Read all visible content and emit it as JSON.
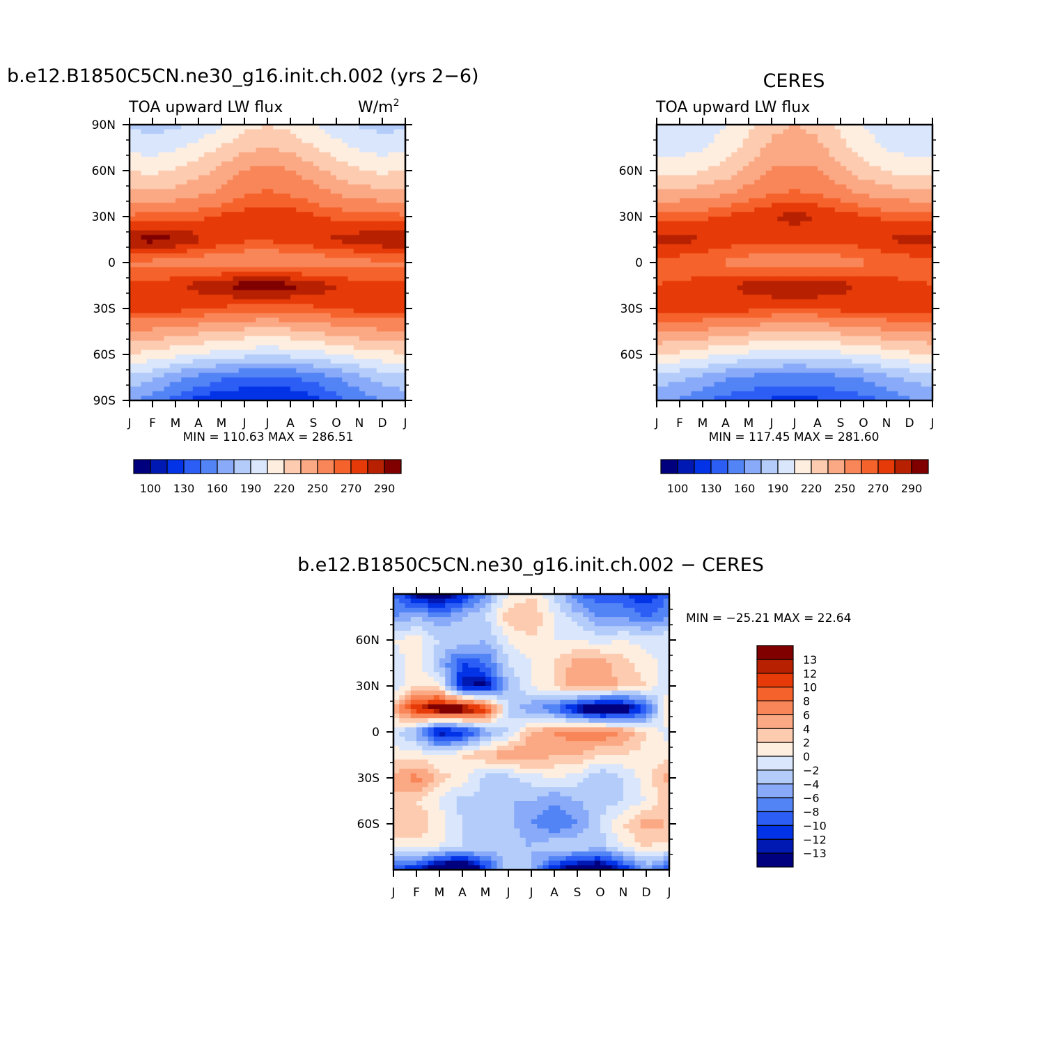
{
  "figure": {
    "panel1_title": "b.e12.B1850C5CN.ne30_g16.init.ch.002 (yrs 2−6)",
    "panel2_title": "CERES",
    "panel3_title": "b.e12.B1850C5CN.ne30_g16.init.ch.002 − CERES",
    "variable_label": "TOA upward LW flux",
    "units_base": "W/m",
    "units_exp": "2"
  },
  "colors": {
    "abs_palette": [
      "#00007f",
      "#0019b2",
      "#0233e6",
      "#2c5ef5",
      "#5384f6",
      "#88aaf8",
      "#b3ccfa",
      "#d9e6fc",
      "#feeee0",
      "#fdcbb0",
      "#fba984",
      "#f98658",
      "#f6622b",
      "#e63b08",
      "#b72102",
      "#800000"
    ],
    "diff_palette": [
      "#00007f",
      "#0019b2",
      "#0233e6",
      "#2c5ef5",
      "#5384f6",
      "#88aaf8",
      "#b3ccfa",
      "#d9e6fc",
      "#feeee0",
      "#fdcbb0",
      "#fba984",
      "#f98658",
      "#f6622b",
      "#e63b08",
      "#b72102",
      "#800000"
    ]
  },
  "chart_data": [
    {
      "type": "heatmap",
      "title": "b.e12.B1850C5CN.ne30_g16.init.ch.002 (yrs 2−6)",
      "subtitle": "TOA upward LW flux",
      "units": "W/m2",
      "x_tick_labels": [
        "J",
        "F",
        "M",
        "A",
        "M",
        "J",
        "J",
        "A",
        "S",
        "O",
        "N",
        "D",
        "J"
      ],
      "y_tick_labels": [
        "90N",
        "60N",
        "30N",
        "0",
        "30S",
        "60S",
        "90S"
      ],
      "ylim": [
        -90,
        90
      ],
      "min": 110.63,
      "max": 286.51,
      "minmax_text": "MIN = 110.63 MAX = 286.51",
      "colorbar_labels": [
        "100",
        "130",
        "160",
        "190",
        "220",
        "250",
        "270",
        "290"
      ],
      "latitudes": [
        90,
        75,
        60,
        45,
        30,
        15,
        0,
        -15,
        -30,
        -45,
        -60,
        -75,
        -90
      ],
      "monthly_values": [
        [
          172,
          170,
          172,
          178,
          188,
          200,
          204,
          200,
          190,
          180,
          174,
          170,
          172
        ],
        [
          186,
          182,
          188,
          196,
          206,
          216,
          220,
          216,
          206,
          196,
          188,
          184,
          186
        ],
        [
          204,
          202,
          206,
          214,
          224,
          236,
          240,
          236,
          226,
          214,
          206,
          202,
          204
        ],
        [
          226,
          224,
          226,
          232,
          238,
          248,
          252,
          248,
          242,
          234,
          228,
          226,
          226
        ],
        [
          252,
          254,
          256,
          258,
          262,
          266,
          268,
          266,
          262,
          258,
          256,
          254,
          252
        ],
        [
          282,
          284,
          282,
          272,
          266,
          262,
          262,
          264,
          268,
          272,
          276,
          280,
          282
        ],
        [
          248,
          246,
          244,
          242,
          240,
          238,
          236,
          238,
          240,
          244,
          246,
          248,
          248
        ],
        [
          262,
          264,
          268,
          274,
          280,
          286,
          286,
          284,
          278,
          270,
          264,
          262,
          262
        ],
        [
          266,
          266,
          264,
          262,
          258,
          256,
          254,
          256,
          258,
          262,
          264,
          266,
          266
        ],
        [
          234,
          232,
          228,
          224,
          220,
          216,
          214,
          216,
          220,
          226,
          230,
          232,
          234
        ],
        [
          204,
          200,
          194,
          188,
          184,
          180,
          178,
          180,
          184,
          190,
          196,
          200,
          204
        ],
        [
          172,
          164,
          150,
          140,
          132,
          128,
          126,
          128,
          134,
          144,
          156,
          166,
          172
        ],
        [
          150,
          138,
          124,
          116,
          112,
          111,
          111,
          112,
          116,
          124,
          136,
          146,
          150
        ]
      ]
    },
    {
      "type": "heatmap",
      "title": "CERES",
      "subtitle": "TOA upward LW flux",
      "x_tick_labels": [
        "J",
        "F",
        "M",
        "A",
        "M",
        "J",
        "J",
        "A",
        "S",
        "O",
        "N",
        "D",
        "J"
      ],
      "y_tick_labels": [
        "60N",
        "30N",
        "0",
        "30S",
        "60S"
      ],
      "ylim": [
        -90,
        90
      ],
      "min": 117.45,
      "max": 281.6,
      "minmax_text": "MIN = 117.45 MAX = 281.60",
      "colorbar_labels": [
        "100",
        "130",
        "160",
        "190",
        "220",
        "250",
        "270",
        "290"
      ],
      "latitudes": [
        90,
        75,
        60,
        45,
        30,
        15,
        0,
        -15,
        -30,
        -45,
        -60,
        -75,
        -90
      ],
      "monthly_values": [
        [
          178,
          178,
          182,
          190,
          202,
          216,
          220,
          216,
          202,
          190,
          182,
          178,
          178
        ],
        [
          184,
          184,
          188,
          196,
          210,
          224,
          228,
          224,
          210,
          196,
          188,
          184,
          184
        ],
        [
          200,
          200,
          204,
          212,
          224,
          236,
          238,
          236,
          224,
          212,
          204,
          200,
          200
        ],
        [
          226,
          226,
          228,
          234,
          242,
          250,
          252,
          250,
          242,
          234,
          228,
          226,
          226
        ],
        [
          254,
          256,
          258,
          262,
          266,
          270,
          274,
          270,
          266,
          262,
          258,
          256,
          254
        ],
        [
          276,
          274,
          270,
          266,
          264,
          264,
          264,
          264,
          264,
          266,
          270,
          274,
          276
        ],
        [
          256,
          254,
          252,
          248,
          244,
          240,
          238,
          240,
          244,
          248,
          252,
          254,
          256
        ],
        [
          260,
          262,
          264,
          268,
          274,
          278,
          280,
          278,
          274,
          268,
          264,
          262,
          260
        ],
        [
          268,
          268,
          268,
          266,
          264,
          262,
          262,
          262,
          264,
          266,
          268,
          268,
          268
        ],
        [
          236,
          234,
          232,
          228,
          224,
          222,
          220,
          222,
          224,
          228,
          232,
          234,
          236
        ],
        [
          206,
          202,
          196,
          190,
          186,
          184,
          182,
          184,
          186,
          190,
          196,
          202,
          206
        ],
        [
          170,
          164,
          156,
          148,
          142,
          138,
          136,
          138,
          142,
          148,
          156,
          164,
          170
        ],
        [
          150,
          142,
          132,
          124,
          120,
          118,
          118,
          118,
          120,
          124,
          132,
          142,
          150
        ]
      ]
    },
    {
      "type": "heatmap",
      "title": "b.e12.B1850C5CN.ne30_g16.init.ch.002 − CERES",
      "x_tick_labels": [
        "J",
        "F",
        "M",
        "A",
        "M",
        "J",
        "J",
        "A",
        "S",
        "O",
        "N",
        "D",
        "J"
      ],
      "y_tick_labels": [
        "60N",
        "30N",
        "0",
        "30S",
        "60S"
      ],
      "ylim": [
        -90,
        90
      ],
      "min": -25.21,
      "max": 22.64,
      "minmax_text": "MIN = −25.21 MAX =   22.64",
      "colorbar_labels": [
        "13",
        "12",
        "10",
        "8",
        "6",
        "4",
        "2",
        "0",
        "−2",
        "−4",
        "−6",
        "−8",
        "−10",
        "−12",
        "−13"
      ],
      "latitudes": [
        90,
        75,
        60,
        45,
        30,
        15,
        0,
        -15,
        -30,
        -45,
        -60,
        -75,
        -90
      ],
      "monthly_values": [
        [
          -8,
          -14,
          -16,
          -12,
          -6,
          0,
          2,
          -2,
          -8,
          -10,
          -10,
          -12,
          -8
        ],
        [
          -6,
          -4,
          -6,
          -4,
          -2,
          3,
          4,
          0,
          -3,
          -6,
          -6,
          -8,
          -6
        ],
        [
          0,
          1,
          -2,
          -2,
          -4,
          0,
          2,
          0,
          0,
          -1,
          0,
          -1,
          0
        ],
        [
          -1,
          1,
          -4,
          -10,
          -8,
          -2,
          0,
          2,
          5,
          5,
          3,
          1,
          -1
        ],
        [
          -2,
          2,
          1,
          -13,
          -14,
          -4,
          0,
          2,
          6,
          6,
          3,
          2,
          -2
        ],
        [
          4,
          12,
          16,
          16,
          12,
          -2,
          -6,
          -8,
          -14,
          -18,
          -16,
          -10,
          4
        ],
        [
          -1,
          -5,
          -14,
          -12,
          -6,
          -2,
          4,
          6,
          8,
          8,
          6,
          2,
          -1
        ],
        [
          1,
          1,
          0,
          2,
          4,
          6,
          6,
          4,
          4,
          2,
          2,
          1,
          1
        ],
        [
          5,
          7,
          3,
          1,
          -3,
          -3,
          -1,
          0,
          -1,
          -4,
          -2,
          1,
          5
        ],
        [
          3,
          2,
          0,
          -3,
          -2,
          -4,
          -4,
          -6,
          -4,
          -3,
          -2,
          0,
          3
        ],
        [
          4,
          4,
          1,
          -2,
          -3,
          -3,
          -6,
          -8,
          -6,
          -2,
          2,
          5,
          4
        ],
        [
          1,
          1,
          0,
          -2,
          -2,
          -3,
          -4,
          -2,
          -2,
          -3,
          0,
          2,
          1
        ],
        [
          -10,
          -12,
          -18,
          -20,
          -12,
          -3,
          -4,
          -12,
          -16,
          -18,
          -12,
          -6,
          -10
        ]
      ]
    }
  ]
}
